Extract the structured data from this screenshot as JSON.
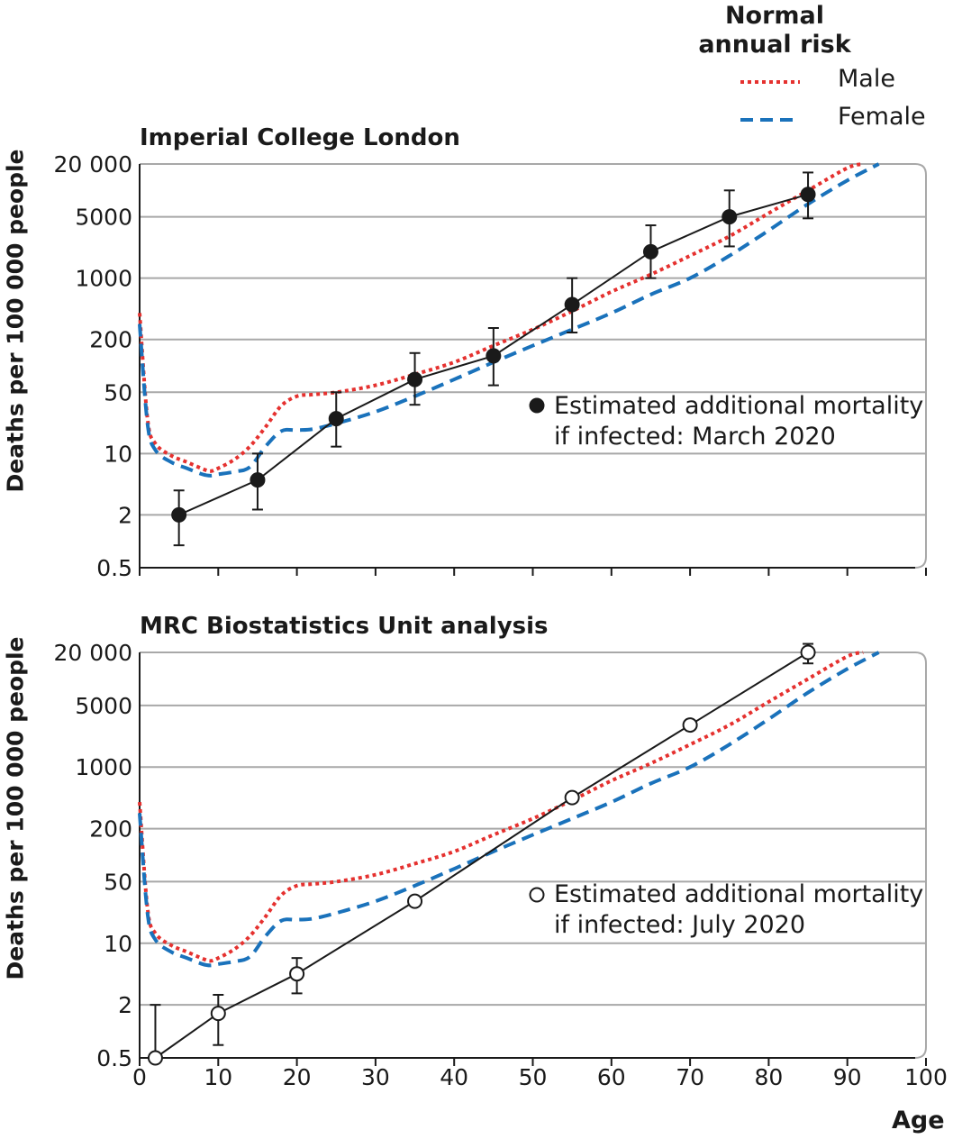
{
  "legend": {
    "title_line1": "Normal",
    "title_line2": "annual risk",
    "male": "Male",
    "female": "Female",
    "male_color": "#e5312f",
    "female_color": "#1a72bb"
  },
  "x_axis_label": "Age",
  "chart_data": [
    {
      "type": "line",
      "title": "Imperial College London",
      "ylabel": "Deaths per 100 000 people",
      "xlabel": "Age",
      "xlim": [
        0,
        100
      ],
      "ylim": [
        0.5,
        20000
      ],
      "yscale": "log",
      "yticks": [
        0.5,
        2,
        10,
        50,
        200,
        1000,
        5000,
        20000
      ],
      "ytick_labels": [
        "0.5",
        "2",
        "10",
        "50",
        "200",
        "1000",
        "5000",
        "20 000"
      ],
      "xticks": [
        0,
        10,
        20,
        30,
        40,
        50,
        60,
        70,
        80,
        90,
        100
      ],
      "grid": true,
      "series": [
        {
          "name": "Male",
          "style": "dotted",
          "color": "#e5312f",
          "x": [
            0,
            1,
            2,
            4,
            6,
            8,
            9,
            10,
            12,
            14,
            16,
            18,
            20,
            22,
            25,
            30,
            35,
            40,
            45,
            50,
            55,
            60,
            65,
            70,
            75,
            80,
            85,
            90,
            92
          ],
          "y": [
            400,
            25,
            13,
            9.5,
            8,
            6.7,
            6.3,
            6.8,
            8.5,
            12,
            20,
            35,
            45,
            47,
            50,
            60,
            80,
            110,
            170,
            260,
            420,
            700,
            1100,
            1800,
            3000,
            5500,
            10000,
            18000,
            20000
          ]
        },
        {
          "name": "Female",
          "style": "dashed",
          "color": "#1a72bb",
          "x": [
            0,
            1,
            2,
            4,
            6,
            8,
            9,
            10,
            12,
            14,
            16,
            18,
            20,
            22,
            25,
            30,
            35,
            40,
            45,
            50,
            55,
            60,
            65,
            70,
            75,
            80,
            85,
            90,
            94
          ],
          "y": [
            300,
            22,
            11,
            8,
            6.8,
            5.8,
            5.6,
            5.8,
            6.2,
            7,
            12,
            18,
            18.5,
            19,
            22,
            30,
            45,
            70,
            110,
            170,
            260,
            400,
            650,
            1000,
            1800,
            3500,
            7000,
            13000,
            20000
          ]
        },
        {
          "name": "Estimated additional mortality if infected: March 2020",
          "style": "solid-markers",
          "color": "#1a1a1a",
          "x": [
            5,
            15,
            25,
            35,
            45,
            55,
            65,
            75,
            85
          ],
          "y": [
            2,
            5,
            25,
            70,
            130,
            500,
            2000,
            5000,
            9000
          ],
          "err_low": [
            0.9,
            2.3,
            12,
            36,
            60,
            240,
            1000,
            2300,
            4800
          ],
          "err_high": [
            3.8,
            10,
            50,
            140,
            270,
            1000,
            4000,
            10000,
            16000
          ]
        }
      ],
      "annotation": [
        "Estimated additional mortality",
        "if infected: March 2020"
      ]
    },
    {
      "type": "line",
      "title": "MRC Biostatistics Unit analysis",
      "ylabel": "Deaths per 100 000 people",
      "xlabel": "Age",
      "xlim": [
        0,
        100
      ],
      "ylim": [
        0.5,
        20000
      ],
      "yscale": "log",
      "yticks": [
        0.5,
        2,
        10,
        50,
        200,
        1000,
        5000,
        20000
      ],
      "ytick_labels": [
        "0.5",
        "2",
        "10",
        "50",
        "200",
        "1000",
        "5000",
        "20 000"
      ],
      "xticks": [
        0,
        10,
        20,
        30,
        40,
        50,
        60,
        70,
        80,
        90,
        100
      ],
      "xtick_labels": [
        "0",
        "10",
        "20",
        "30",
        "40",
        "50",
        "60",
        "70",
        "80",
        "90",
        "100"
      ],
      "grid": true,
      "series": [
        {
          "name": "Male",
          "style": "dotted",
          "color": "#e5312f",
          "x": [
            0,
            1,
            2,
            4,
            6,
            8,
            9,
            10,
            12,
            14,
            16,
            18,
            20,
            22,
            25,
            30,
            35,
            40,
            45,
            50,
            55,
            60,
            65,
            70,
            75,
            80,
            85,
            90,
            92
          ],
          "y": [
            400,
            25,
            13,
            9.5,
            8,
            6.7,
            6.3,
            6.8,
            8.5,
            12,
            20,
            35,
            45,
            47,
            50,
            60,
            80,
            110,
            170,
            260,
            420,
            700,
            1100,
            1800,
            3000,
            5500,
            10000,
            18000,
            20000
          ]
        },
        {
          "name": "Female",
          "style": "dashed",
          "color": "#1a72bb",
          "x": [
            0,
            1,
            2,
            4,
            6,
            8,
            9,
            10,
            12,
            14,
            16,
            18,
            20,
            22,
            25,
            30,
            35,
            40,
            45,
            50,
            55,
            60,
            65,
            70,
            75,
            80,
            85,
            90,
            94
          ],
          "y": [
            300,
            22,
            11,
            8,
            6.8,
            5.8,
            5.6,
            5.8,
            6.2,
            7,
            12,
            18,
            18.5,
            19,
            22,
            30,
            45,
            70,
            110,
            170,
            260,
            400,
            650,
            1000,
            1800,
            3500,
            7000,
            13000,
            20000
          ]
        },
        {
          "name": "Estimated additional mortality if infected: July 2020",
          "style": "solid-open-markers",
          "color": "#1a1a1a",
          "x": [
            2,
            10,
            20,
            35,
            55,
            70,
            85
          ],
          "y": [
            0.5,
            1.6,
            4.5,
            30,
            450,
            3000,
            20000
          ],
          "err_low": [
            0.5,
            0.7,
            2.7,
            30,
            450,
            3000,
            15000
          ],
          "err_high": [
            2.0,
            2.6,
            6.8,
            30,
            450,
            3000,
            25000
          ]
        }
      ],
      "annotation": [
        "Estimated additional mortality",
        "if infected: July 2020"
      ]
    }
  ]
}
